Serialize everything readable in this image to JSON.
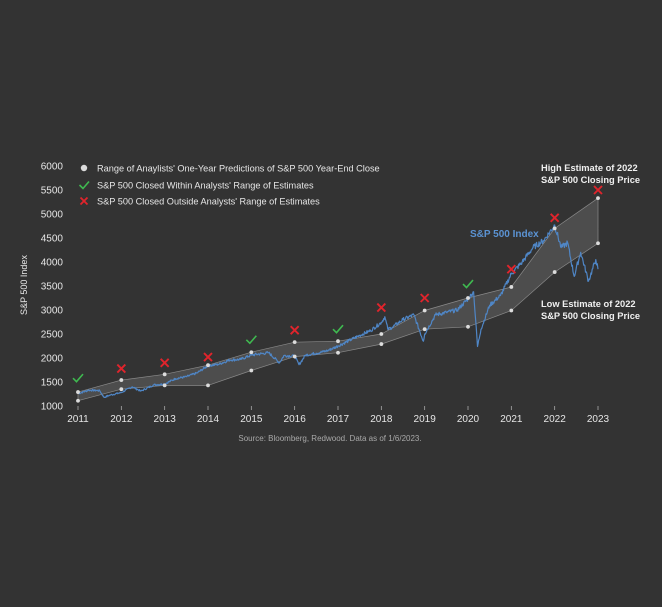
{
  "chart_data": {
    "type": "line",
    "title": "",
    "xlabel": "",
    "ylabel": "S&P 500 Index",
    "xlim": [
      2011,
      2023
    ],
    "ylim": [
      1000,
      6000
    ],
    "x_ticks": [
      "2011",
      "2012",
      "2013",
      "2014",
      "2015",
      "2016",
      "2017",
      "2018",
      "2019",
      "2020",
      "2021",
      "2022",
      "2023"
    ],
    "y_ticks": [
      "1000",
      "1500",
      "2000",
      "2500",
      "3000",
      "3500",
      "4000",
      "4500",
      "5000",
      "5500",
      "6000"
    ],
    "legend": [
      "Range of Anaylists' One-Year Predictions of S&P 500 Year-End Close",
      "S&P 500 Closed Within Analysts' Range of Estimates",
      "S&P 500 Closed Outside Analysts' Range of Estimates"
    ],
    "annotations": {
      "series_label": "S&P 500 Index",
      "high_estimate_line1": "High Estimate of 2022",
      "high_estimate_line2": "S&P 500 Closing Price",
      "low_estimate_line1": "Low Estimate of 2022",
      "low_estimate_line2": "S&P 500 Closing Price"
    },
    "source": "Source: Bloomberg, Redwood. Data as of 1/6/2023.",
    "sp500_series": {
      "name": "S&P 500 Index",
      "color": "#4f86c6",
      "x": [
        2011.0,
        2011.25,
        2011.5,
        2011.6,
        2011.75,
        2012.0,
        2012.25,
        2012.45,
        2012.75,
        2013.0,
        2013.25,
        2013.5,
        2013.75,
        2014.0,
        2014.25,
        2014.5,
        2014.75,
        2015.0,
        2015.4,
        2015.65,
        2015.75,
        2016.0,
        2016.1,
        2016.25,
        2016.5,
        2016.75,
        2017.0,
        2017.25,
        2017.5,
        2017.75,
        2018.0,
        2018.08,
        2018.15,
        2018.25,
        2018.5,
        2018.75,
        2018.97,
        2019.0,
        2019.25,
        2019.5,
        2019.75,
        2020.0,
        2020.13,
        2020.22,
        2020.3,
        2020.5,
        2020.75,
        2021.0,
        2021.25,
        2021.5,
        2021.75,
        2022.0,
        2022.15,
        2022.3,
        2022.45,
        2022.6,
        2022.78,
        2022.95,
        2023.0
      ],
      "y": [
        1258,
        1330,
        1320,
        1180,
        1230,
        1280,
        1400,
        1310,
        1440,
        1460,
        1570,
        1610,
        1690,
        1840,
        1870,
        1960,
        1970,
        2060,
        2110,
        1900,
        2050,
        2040,
        1860,
        2060,
        2100,
        2150,
        2250,
        2360,
        2470,
        2570,
        2740,
        2860,
        2600,
        2640,
        2800,
        2900,
        2350,
        2500,
        2900,
        2950,
        3000,
        3230,
        3380,
        2240,
        2600,
        3100,
        3300,
        3750,
        4000,
        4300,
        4450,
        4770,
        4300,
        4400,
        3700,
        4200,
        3600,
        4050,
        3850
      ]
    },
    "range_band": {
      "x": [
        2011,
        2012,
        2013,
        2014,
        2015,
        2016,
        2017,
        2018,
        2019,
        2020,
        2021,
        2022,
        2023
      ],
      "high": [
        1290,
        1540,
        1660,
        1850,
        2120,
        2330,
        2350,
        2500,
        2990,
        3250,
        3480,
        4700,
        5330
      ],
      "low": [
        1110,
        1350,
        1430,
        1430,
        1740,
        2030,
        2110,
        2290,
        2600,
        2650,
        2990,
        3790,
        4390
      ]
    },
    "outcome_markers": [
      {
        "x": 2011,
        "y": 1580,
        "result": "within"
      },
      {
        "x": 2012,
        "y": 1780,
        "result": "outside"
      },
      {
        "x": 2013,
        "y": 1900,
        "result": "outside"
      },
      {
        "x": 2014,
        "y": 2020,
        "result": "outside"
      },
      {
        "x": 2015,
        "y": 2380,
        "result": "within"
      },
      {
        "x": 2016,
        "y": 2580,
        "result": "outside"
      },
      {
        "x": 2017,
        "y": 2600,
        "result": "within"
      },
      {
        "x": 2018,
        "y": 3050,
        "result": "outside"
      },
      {
        "x": 2019,
        "y": 3250,
        "result": "outside"
      },
      {
        "x": 2020,
        "y": 3540,
        "result": "within"
      },
      {
        "x": 2021,
        "y": 3850,
        "result": "outside"
      },
      {
        "x": 2022,
        "y": 4920,
        "result": "outside"
      },
      {
        "x": 2023,
        "y": 5500,
        "result": "outside"
      }
    ],
    "colors": {
      "background": "#333333",
      "text": "#e6e6e6",
      "muted_text": "#a9a9a9",
      "band_fill": "#4d4d4d",
      "band_edge": "#8a8a8a",
      "dot": "#dcdcdc",
      "check": "#3fb950",
      "cross": "#e0242c"
    }
  }
}
